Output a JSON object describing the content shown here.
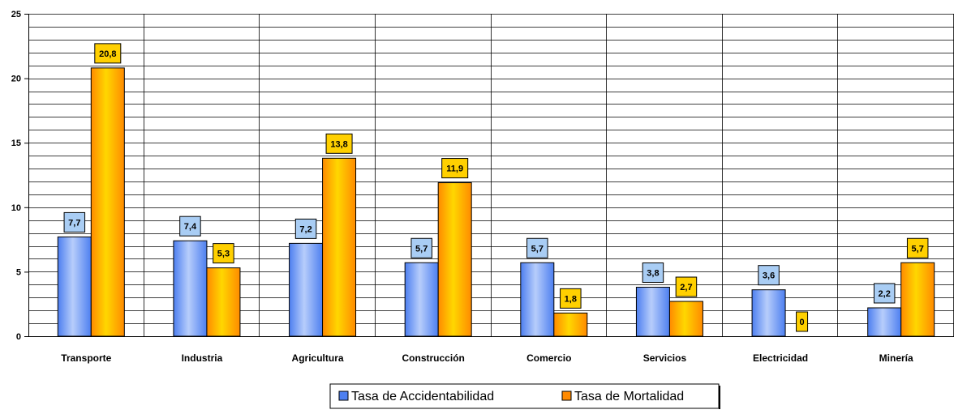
{
  "chart_data": {
    "type": "bar",
    "title": "",
    "xlabel": "",
    "ylabel": "",
    "categories": [
      "Transporte",
      "Industria",
      "Agricultura",
      "Construcción",
      "Comercio",
      "Servicios",
      "Electricidad",
      "Minería"
    ],
    "series": [
      {
        "name": "Tasa de Accidentabilidad",
        "values": [
          7.7,
          7.4,
          7.2,
          5.7,
          5.7,
          3.8,
          3.6,
          2.2
        ],
        "labels": [
          "7,7",
          "7,4",
          "7,2",
          "5,7",
          "5,7",
          "3,8",
          "3,6",
          "2,2"
        ],
        "color": "#4d7ff0",
        "color_light": "#b7cdfb",
        "label_bg": "#a9cdf4"
      },
      {
        "name": "Tasa de Mortalidad",
        "values": [
          20.8,
          5.3,
          13.8,
          11.9,
          1.8,
          2.7,
          0,
          5.7
        ],
        "labels": [
          "20,8",
          "5,3",
          "13,8",
          "11,9",
          "1,8",
          "2,7",
          "0",
          "5,7"
        ],
        "color": "#ff8a00",
        "color_light": "#ffd700",
        "label_bg": "#ffd000"
      }
    ],
    "ylim": [
      0,
      25
    ],
    "yticks": [
      0,
      5,
      10,
      15,
      20,
      25
    ],
    "minor_step": 1,
    "grid": true,
    "legend_position": "bottom"
  }
}
